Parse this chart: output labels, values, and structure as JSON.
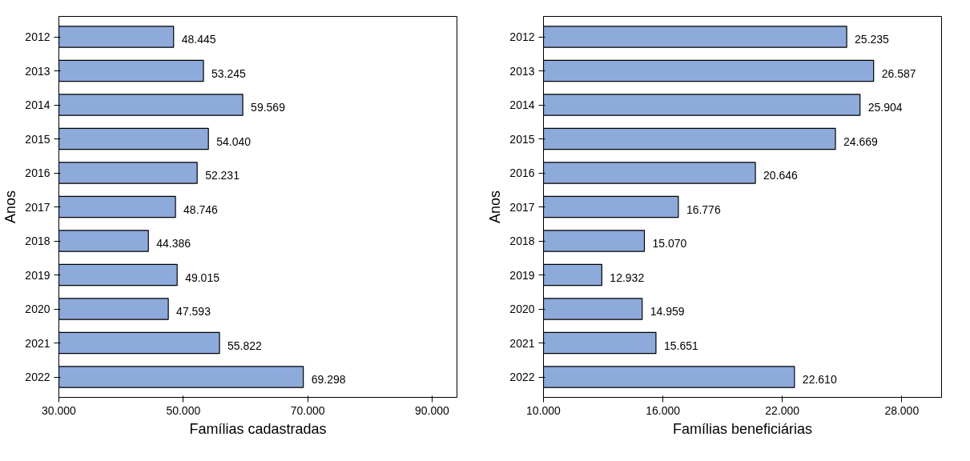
{
  "chart_data": [
    {
      "type": "bar",
      "orientation": "horizontal",
      "xlabel": "Famílias cadastradas",
      "ylabel": "Anos",
      "categories": [
        "2012",
        "2013",
        "2014",
        "2015",
        "2016",
        "2017",
        "2018",
        "2019",
        "2020",
        "2021",
        "2022"
      ],
      "series": [
        {
          "color": "#8eaadb",
          "values": [
            48445,
            53245,
            59569,
            54040,
            52231,
            48746,
            44386,
            49015,
            47593,
            55822,
            69298
          ],
          "value_labels": [
            "48.445",
            "53.245",
            "59.569",
            "54.040",
            "52.231",
            "48.746",
            "44.386",
            "49.015",
            "47.593",
            "55.822",
            "69.298"
          ]
        }
      ],
      "xlim": [
        30000,
        94000
      ],
      "xticks": [
        {
          "value": 30000,
          "label": "30.000"
        },
        {
          "value": 50000,
          "label": "50.000"
        },
        {
          "value": 70000,
          "label": "70.000"
        },
        {
          "value": 90000,
          "label": "90.000"
        }
      ],
      "grid": false
    },
    {
      "type": "bar",
      "orientation": "horizontal",
      "xlabel": "Famílias beneficiárias",
      "ylabel": "Anos",
      "categories": [
        "2012",
        "2013",
        "2014",
        "2015",
        "2016",
        "2017",
        "2018",
        "2019",
        "2020",
        "2021",
        "2022"
      ],
      "series": [
        {
          "color": "#8eaadb",
          "values": [
            25235,
            26587,
            25904,
            24669,
            20646,
            16776,
            15070,
            12932,
            14959,
            15651,
            22610
          ],
          "value_labels": [
            "25.235",
            "26.587",
            "25.904",
            "24.669",
            "20.646",
            "16.776",
            "15.070",
            "12.932",
            "14.959",
            "15.651",
            "22.610"
          ]
        }
      ],
      "xlim": [
        10000,
        30000
      ],
      "xticks": [
        {
          "value": 10000,
          "label": "10.000"
        },
        {
          "value": 16000,
          "label": "16.000"
        },
        {
          "value": 22000,
          "label": "22.000"
        },
        {
          "value": 28000,
          "label": "28.000"
        }
      ],
      "grid": false
    }
  ]
}
